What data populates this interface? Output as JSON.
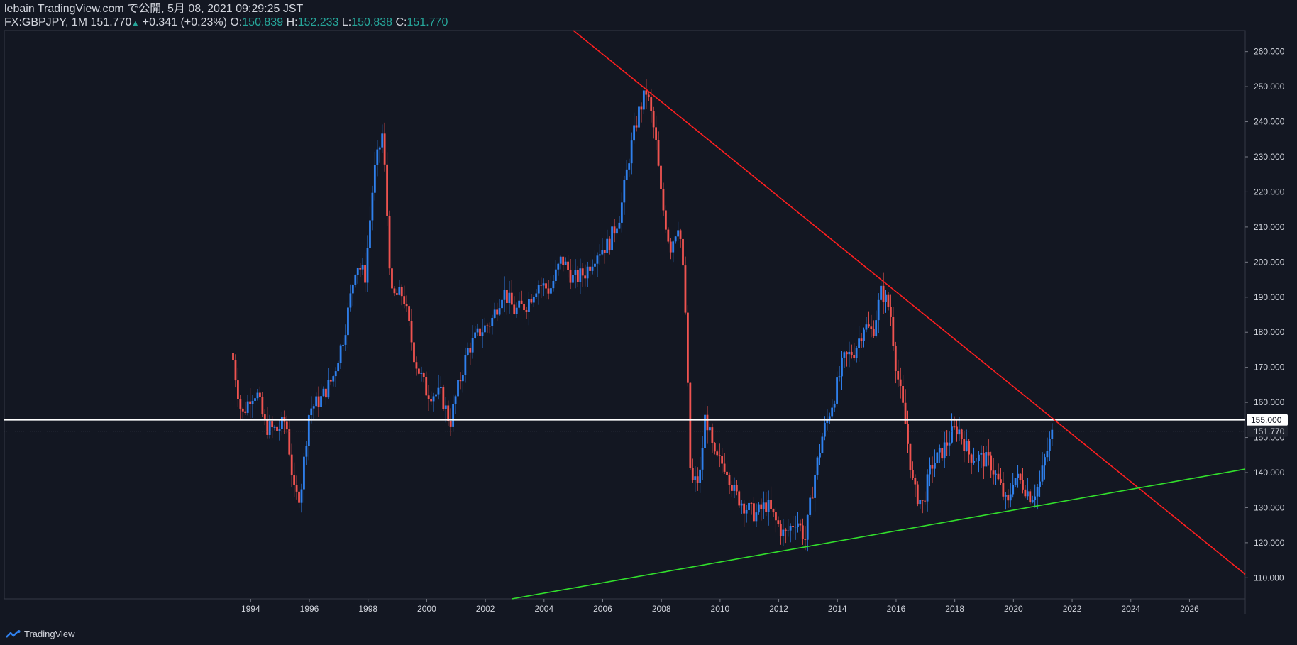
{
  "header": {
    "publisher": "lebain TradingView.com で公開, 5月 08, 2021 09:29:25 JST",
    "symbol": "FX:GBPJPY, 1M",
    "last": "151.770",
    "change_arrow": "▲",
    "change": "+0.341 (+0.23%)",
    "o_label": "O:",
    "o_value": "150.839",
    "h_label": "H:",
    "h_value": "152.233",
    "l_label": "L:",
    "l_value": "150.838",
    "c_label": "C:",
    "c_value": "151.770"
  },
  "footer": {
    "brand": "TradingView",
    "logo_icon": "tradingview-logo-icon"
  },
  "colors": {
    "background": "#131722",
    "up": "#2f80ed",
    "down": "#ef5350",
    "resistance": "#ff1f1f",
    "support": "#32e02c",
    "level": "#ffffff"
  },
  "chart_data": {
    "type": "candlestick",
    "symbol": "FX:GBPJPY",
    "interval": "1M",
    "x_ticks": [
      "1994",
      "1996",
      "1998",
      "2000",
      "2002",
      "2004",
      "2006",
      "2008",
      "2010",
      "2012",
      "2014",
      "2016",
      "2018",
      "2020",
      "2022",
      "2024",
      "2026"
    ],
    "y_ticks": [
      "110.000",
      "120.000",
      "130.000",
      "140.000",
      "150.000",
      "160.000",
      "170.000",
      "180.000",
      "190.000",
      "200.000",
      "210.000",
      "220.000",
      "230.000",
      "240.000",
      "250.000",
      "260.000"
    ],
    "x_range": [
      1985.6,
      2027.9
    ],
    "y_range": [
      104.0,
      266.0
    ],
    "price_path": [
      [
        1993.4,
        172
      ],
      [
        1993.7,
        156
      ],
      [
        1994.0,
        162
      ],
      [
        1994.2,
        163
      ],
      [
        1994.5,
        153
      ],
      [
        1994.9,
        152
      ],
      [
        1995.2,
        155
      ],
      [
        1995.5,
        133
      ],
      [
        1995.7,
        134
      ],
      [
        1996.0,
        158
      ],
      [
        1996.4,
        161
      ],
      [
        1996.8,
        167
      ],
      [
        1997.2,
        180
      ],
      [
        1997.6,
        200
      ],
      [
        1997.9,
        196
      ],
      [
        1998.2,
        225
      ],
      [
        1998.5,
        237
      ],
      [
        1998.8,
        190
      ],
      [
        1999.2,
        191
      ],
      [
        1999.6,
        172
      ],
      [
        2000.0,
        163
      ],
      [
        2000.5,
        162
      ],
      [
        2000.8,
        154
      ],
      [
        2001.0,
        162
      ],
      [
        2001.4,
        175
      ],
      [
        2001.8,
        180
      ],
      [
        2002.2,
        183
      ],
      [
        2002.6,
        192
      ],
      [
        2003.0,
        186
      ],
      [
        2003.4,
        188
      ],
      [
        2003.8,
        194
      ],
      [
        2004.2,
        192
      ],
      [
        2004.6,
        201
      ],
      [
        2005.0,
        195
      ],
      [
        2005.4,
        197
      ],
      [
        2005.8,
        203
      ],
      [
        2006.2,
        205
      ],
      [
        2006.6,
        214
      ],
      [
        2006.9,
        230
      ],
      [
        2007.2,
        242
      ],
      [
        2007.5,
        249
      ],
      [
        2007.8,
        235
      ],
      [
        2008.0,
        218
      ],
      [
        2008.3,
        204
      ],
      [
        2008.6,
        212
      ],
      [
        2008.8,
        190
      ],
      [
        2009.0,
        137
      ],
      [
        2009.3,
        138
      ],
      [
        2009.5,
        157
      ],
      [
        2009.8,
        144
      ],
      [
        2010.2,
        142
      ],
      [
        2010.5,
        134
      ],
      [
        2010.9,
        130
      ],
      [
        2011.2,
        128
      ],
      [
        2011.6,
        131
      ],
      [
        2011.9,
        126
      ],
      [
        2012.2,
        122
      ],
      [
        2012.6,
        127
      ],
      [
        2012.9,
        121
      ],
      [
        2013.2,
        138
      ],
      [
        2013.5,
        151
      ],
      [
        2013.9,
        162
      ],
      [
        2014.2,
        172
      ],
      [
        2014.6,
        175
      ],
      [
        2014.9,
        182
      ],
      [
        2015.2,
        180
      ],
      [
        2015.5,
        192
      ],
      [
        2015.8,
        186
      ],
      [
        2016.0,
        170
      ],
      [
        2016.3,
        155
      ],
      [
        2016.6,
        135
      ],
      [
        2016.9,
        131
      ],
      [
        2017.2,
        142
      ],
      [
        2017.5,
        145
      ],
      [
        2017.9,
        151
      ],
      [
        2018.1,
        153
      ],
      [
        2018.5,
        145
      ],
      [
        2018.9,
        144
      ],
      [
        2019.2,
        143
      ],
      [
        2019.6,
        135
      ],
      [
        2019.8,
        130
      ],
      [
        2020.0,
        139
      ],
      [
        2020.3,
        137
      ],
      [
        2020.6,
        133
      ],
      [
        2020.9,
        137
      ],
      [
        2021.1,
        145
      ],
      [
        2021.35,
        151.77
      ]
    ],
    "trendlines": [
      {
        "name": "resistance",
        "color": "#ff1f1f",
        "x1": 2005.0,
        "y1": 266.0,
        "x2": 2027.9,
        "y2": 111.0
      },
      {
        "name": "support",
        "color": "#32e02c",
        "x1": 2002.9,
        "y1": 104.0,
        "x2": 2027.9,
        "y2": 141.0
      }
    ],
    "horizontal_level": {
      "value": 155.0,
      "label": "155.000",
      "color": "#ffffff"
    },
    "last_price": {
      "value": 151.77,
      "label": "151.770"
    }
  }
}
